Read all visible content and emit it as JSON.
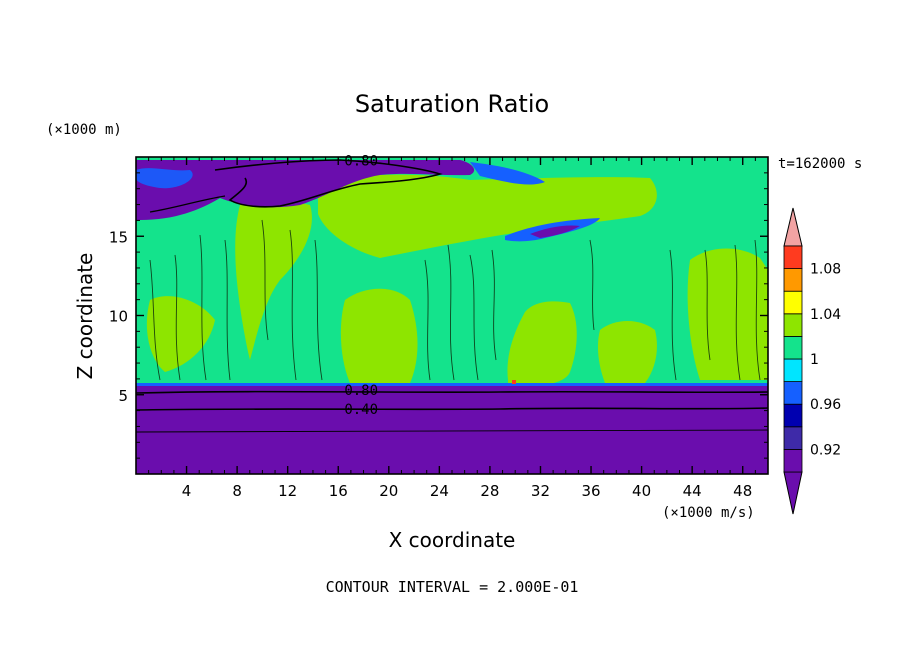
{
  "chart_data": {
    "type": "contour",
    "title": "Saturation Ratio",
    "xlabel": "X coordinate",
    "ylabel": "Z coordinate",
    "x_units": "(×1000 m/s)",
    "y_units": "(×1000 m)",
    "time_label": "t=162000 s",
    "footer": "CONTOUR INTERVAL = 2.000E-01",
    "xlim": [
      0,
      50
    ],
    "ylim": [
      0,
      20
    ],
    "x_ticks": [
      4,
      8,
      12,
      16,
      20,
      24,
      28,
      32,
      36,
      40,
      44,
      48
    ],
    "y_ticks": [
      5,
      10,
      15
    ],
    "contour_labels": [
      {
        "text": "0.80",
        "x": 17.5,
        "y": 19.6
      },
      {
        "text": "0.80",
        "x": 17.5,
        "y": 5.1
      },
      {
        "text": "0.40",
        "x": 17.5,
        "y": 3.9
      }
    ],
    "colorbar": {
      "levels": [
        0.9,
        0.92,
        0.94,
        0.96,
        0.98,
        1.0,
        1.02,
        1.04,
        1.06,
        1.08,
        1.1
      ],
      "tick_labels": [
        "0.92",
        "0.96",
        "1",
        "1.04",
        "1.08"
      ],
      "tick_values": [
        0.92,
        0.96,
        1.0,
        1.04,
        1.08
      ],
      "colors": [
        "#6a0dad",
        "#3e2aa8",
        "#0000b0",
        "#1560ff",
        "#00e5ff",
        "#14e38c",
        "#8ee500",
        "#ffff00",
        "#ff9900",
        "#ff3b1f"
      ],
      "under_color": "#6a0dad",
      "over_color": "#f2a3a3"
    }
  }
}
